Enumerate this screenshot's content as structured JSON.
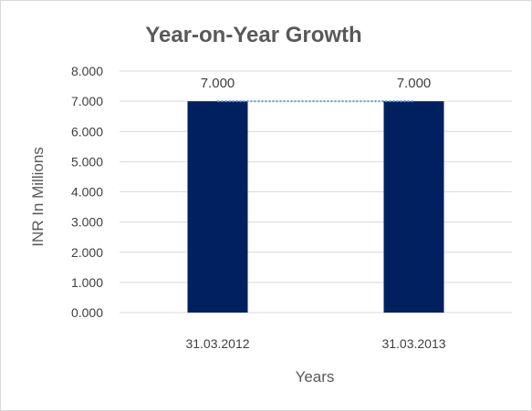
{
  "chart_data": {
    "type": "bar",
    "title": "Year-on-Year Growth",
    "xlabel": "Years",
    "ylabel": "INR In Millions",
    "categories": [
      "31.03.2012",
      "31.03.2013"
    ],
    "values": [
      7.0,
      7.0
    ],
    "data_labels": [
      "7.000",
      "7.000"
    ],
    "ylim": [
      0,
      8
    ],
    "y_ticks": [
      {
        "value": 0,
        "label": "0.000"
      },
      {
        "value": 1,
        "label": "1.000"
      },
      {
        "value": 2,
        "label": "2.000"
      },
      {
        "value": 3,
        "label": "3.000"
      },
      {
        "value": 4,
        "label": "4.000"
      },
      {
        "value": 5,
        "label": "5.000"
      },
      {
        "value": 6,
        "label": "6.000"
      },
      {
        "value": 7,
        "label": "7.000"
      },
      {
        "value": 8,
        "label": "8.000"
      }
    ],
    "grid": true,
    "legend": "none",
    "trendline": {
      "style": "dotted",
      "connects": "bar-tops"
    },
    "colors": {
      "bar": "#002060",
      "trendline": "#5b9bd5",
      "grid": "#d9d9d9",
      "border": "#d9d9d9"
    }
  }
}
